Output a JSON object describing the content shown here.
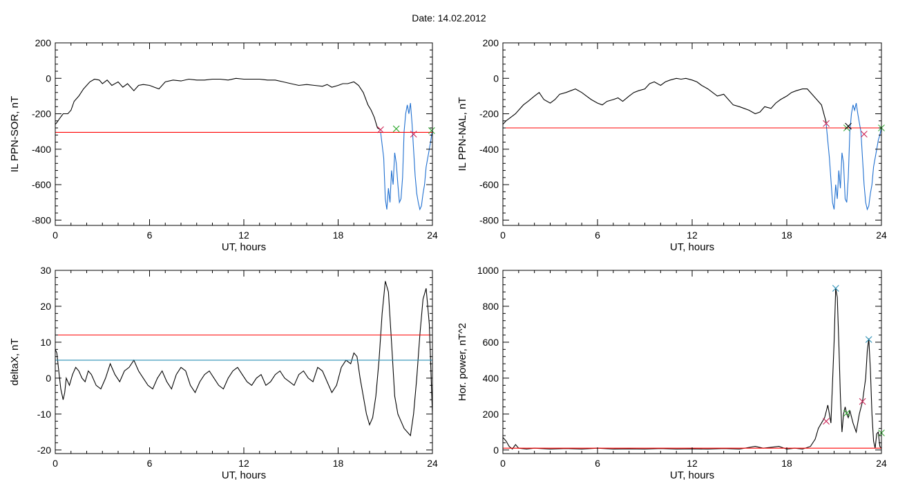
{
  "title": "Date:  14.02.2012",
  "chart_data": [
    {
      "id": "sor",
      "type": "line",
      "xlabel": "UT, hours",
      "ylabel": "IL PPN-SOR, nT",
      "xlim": [
        0,
        24
      ],
      "ylim": [
        -830,
        200
      ],
      "xticks": [
        0,
        6,
        12,
        18,
        24
      ],
      "yticks": [
        -800,
        -600,
        -400,
        -200,
        0,
        200
      ],
      "grid": false,
      "series": [
        {
          "color": "#000000",
          "x": [
            0,
            0.1,
            0.25,
            0.5,
            0.8,
            1.0,
            1.2,
            1.5,
            1.8,
            2.0,
            2.2,
            2.5,
            2.8,
            3.0,
            3.3,
            3.6,
            4.0,
            4.3,
            4.6,
            5.0,
            5.3,
            5.6,
            6.0,
            6.3,
            6.6,
            7.0,
            7.5,
            8.0,
            8.5,
            9.0,
            9.5,
            10.0,
            10.5,
            11.0,
            11.5,
            12.0,
            12.5,
            13.0,
            13.5,
            14.0,
            14.5,
            15.0,
            15.5,
            16.0,
            16.5,
            17.0,
            17.3,
            17.6,
            18.0,
            18.3,
            18.6,
            19.0,
            19.3,
            19.6,
            19.9,
            20.1,
            20.3,
            20.5,
            20.7
          ],
          "y": [
            -260,
            -250,
            -230,
            -200,
            -200,
            -180,
            -130,
            -100,
            -60,
            -40,
            -20,
            -5,
            -10,
            -30,
            -10,
            -40,
            -20,
            -50,
            -30,
            -70,
            -40,
            -35,
            -40,
            -50,
            -60,
            -20,
            -10,
            -15,
            -5,
            -10,
            -10,
            -5,
            -5,
            -10,
            0,
            -5,
            -5,
            -5,
            -10,
            -10,
            -20,
            -30,
            -40,
            -35,
            -40,
            -45,
            -35,
            -50,
            -40,
            -30,
            -30,
            -20,
            -40,
            -80,
            -150,
            -180,
            -220,
            -280,
            -290
          ]
        },
        {
          "color": "#1f6fd0",
          "x": [
            20.7,
            20.9,
            21.0,
            21.1,
            21.2,
            21.3,
            21.4,
            21.5,
            21.6,
            21.7,
            21.8,
            21.9,
            22.0,
            22.1,
            22.2,
            22.3,
            22.4,
            22.5,
            22.6,
            22.7,
            22.8,
            22.9,
            23.0,
            23.1,
            23.2,
            23.3,
            23.4,
            23.5,
            23.6,
            23.7,
            23.8,
            23.9,
            24.0
          ],
          "y": [
            -300,
            -450,
            -680,
            -740,
            -620,
            -700,
            -520,
            -600,
            -420,
            -480,
            -600,
            -700,
            -680,
            -560,
            -300,
            -200,
            -150,
            -200,
            -140,
            -250,
            -400,
            -550,
            -650,
            -700,
            -740,
            -720,
            -650,
            -600,
            -500,
            -450,
            -400,
            -350,
            -290
          ]
        },
        {
          "color": "#ff0000",
          "x": [
            0,
            24
          ],
          "y": [
            -305,
            -305
          ]
        }
      ],
      "markers": [
        {
          "x": 20.7,
          "y": -290,
          "color": "#cc2255"
        },
        {
          "x": 21.7,
          "y": -285,
          "color": "#33aa33"
        },
        {
          "x": 22.8,
          "y": -315,
          "color": "#cc2255"
        },
        {
          "x": 23.95,
          "y": -295,
          "color": "#33aa33"
        }
      ]
    },
    {
      "id": "nal",
      "type": "line",
      "xlabel": "UT, hours",
      "ylabel": "IL PPN-NAL, nT",
      "xlim": [
        0,
        24
      ],
      "ylim": [
        -830,
        200
      ],
      "xticks": [
        0,
        6,
        12,
        18,
        24
      ],
      "yticks": [
        -800,
        -600,
        -400,
        -200,
        0,
        200
      ],
      "grid": false,
      "series": [
        {
          "color": "#000000",
          "x": [
            0,
            0.2,
            0.5,
            0.8,
            1.0,
            1.3,
            1.6,
            2.0,
            2.3,
            2.6,
            3.0,
            3.3,
            3.6,
            4.0,
            4.3,
            4.6,
            5.0,
            5.3,
            5.6,
            6.0,
            6.3,
            6.6,
            7.0,
            7.3,
            7.6,
            8.0,
            8.3,
            8.6,
            9.0,
            9.3,
            9.6,
            10.0,
            10.3,
            10.6,
            11.0,
            11.3,
            11.6,
            12.0,
            12.3,
            12.6,
            13.0,
            13.3,
            13.6,
            14.0,
            14.3,
            14.6,
            15.0,
            15.3,
            15.6,
            16.0,
            16.3,
            16.6,
            17.0,
            17.3,
            17.6,
            18.0,
            18.3,
            18.6,
            19.0,
            19.3,
            19.6,
            19.9,
            20.2,
            20.5
          ],
          "y": [
            -260,
            -240,
            -220,
            -200,
            -180,
            -150,
            -130,
            -100,
            -80,
            -120,
            -140,
            -120,
            -90,
            -80,
            -70,
            -60,
            -80,
            -100,
            -120,
            -140,
            -150,
            -130,
            -120,
            -110,
            -130,
            -100,
            -80,
            -70,
            -60,
            -30,
            -20,
            -40,
            -20,
            -10,
            0,
            -5,
            0,
            -10,
            -20,
            -40,
            -60,
            -80,
            -100,
            -90,
            -120,
            -150,
            -160,
            -170,
            -180,
            -200,
            -190,
            -160,
            -170,
            -140,
            -120,
            -100,
            -80,
            -70,
            -60,
            -60,
            -90,
            -120,
            -150,
            -250
          ]
        },
        {
          "color": "#1f6fd0",
          "x": [
            20.5,
            20.7,
            20.9,
            21.0,
            21.1,
            21.2,
            21.3,
            21.4,
            21.5,
            21.6,
            21.7,
            21.8,
            21.9,
            22.0,
            22.1,
            22.2,
            22.3,
            22.4,
            22.5,
            22.6,
            22.7,
            22.8,
            22.9,
            23.0,
            23.1,
            23.2,
            23.3,
            23.4,
            23.5,
            23.6,
            23.7,
            23.8,
            23.9,
            24.0
          ],
          "y": [
            -260,
            -450,
            -700,
            -740,
            -600,
            -680,
            -520,
            -620,
            -420,
            -480,
            -680,
            -700,
            -560,
            -300,
            -200,
            -150,
            -180,
            -140,
            -200,
            -250,
            -300,
            -450,
            -600,
            -700,
            -740,
            -720,
            -650,
            -600,
            -500,
            -450,
            -400,
            -350,
            -320,
            -280
          ]
        },
        {
          "color": "#ff0000",
          "x": [
            0,
            24
          ],
          "y": [
            -280,
            -280
          ]
        }
      ],
      "markers": [
        {
          "x": 20.5,
          "y": -255,
          "color": "#cc2255"
        },
        {
          "x": 21.8,
          "y": -280,
          "color": "#33aa33"
        },
        {
          "x": 21.9,
          "y": -270,
          "color": "#000000"
        },
        {
          "x": 22.9,
          "y": -315,
          "color": "#cc2255"
        },
        {
          "x": 24.0,
          "y": -280,
          "color": "#33aa33"
        }
      ]
    },
    {
      "id": "deltax",
      "type": "line",
      "xlabel": "UT, hours",
      "ylabel": "deltaX, nT",
      "xlim": [
        0,
        24
      ],
      "ylim": [
        -21,
        30
      ],
      "xticks": [
        0,
        6,
        12,
        18,
        24
      ],
      "yticks": [
        -20,
        -10,
        0,
        10,
        20,
        30
      ],
      "grid": false,
      "series": [
        {
          "color": "#000000",
          "x": [
            0,
            0.1,
            0.2,
            0.35,
            0.5,
            0.6,
            0.7,
            0.9,
            1.1,
            1.3,
            1.5,
            1.7,
            1.9,
            2.1,
            2.3,
            2.6,
            2.9,
            3.2,
            3.5,
            3.8,
            4.1,
            4.4,
            4.7,
            5.0,
            5.3,
            5.6,
            5.9,
            6.2,
            6.5,
            6.8,
            7.1,
            7.4,
            7.7,
            8.0,
            8.3,
            8.6,
            8.9,
            9.2,
            9.5,
            9.8,
            10.1,
            10.4,
            10.7,
            11.0,
            11.3,
            11.6,
            11.9,
            12.2,
            12.5,
            12.8,
            13.1,
            13.4,
            13.7,
            14.0,
            14.3,
            14.6,
            14.9,
            15.2,
            15.5,
            15.8,
            16.1,
            16.4,
            16.7,
            17.0,
            17.3,
            17.6,
            17.9,
            18.2,
            18.5,
            18.8,
            19.0,
            19.2,
            19.4,
            19.6,
            19.8,
            20.0,
            20.2,
            20.4,
            20.6,
            20.8,
            21.0,
            21.2,
            21.4,
            21.6,
            21.8,
            22.0,
            22.2,
            22.4,
            22.6,
            22.8,
            23.0,
            23.2,
            23.4,
            23.6,
            23.8,
            24.0
          ],
          "y": [
            8,
            7,
            3,
            -3,
            -6,
            -4,
            0,
            -2,
            1,
            3,
            2,
            0,
            -1,
            2,
            1,
            -2,
            -3,
            0,
            4,
            1,
            -1,
            2,
            3,
            5,
            2,
            0,
            -2,
            -3,
            0,
            2,
            -1,
            -3,
            1,
            3,
            2,
            -2,
            -4,
            -1,
            1,
            2,
            0,
            -2,
            -3,
            0,
            2,
            3,
            1,
            -1,
            -2,
            0,
            1,
            -2,
            -1,
            1,
            2,
            0,
            -1,
            -2,
            1,
            2,
            0,
            -1,
            3,
            2,
            -1,
            -4,
            -2,
            3,
            5,
            4,
            7,
            6,
            0,
            -5,
            -10,
            -13,
            -11,
            -5,
            5,
            18,
            27,
            24,
            10,
            -5,
            -10,
            -12,
            -14,
            -15,
            -16,
            -10,
            0,
            12,
            22,
            25,
            15,
            -10
          ]
        },
        {
          "color": "#ff0000",
          "x": [
            0,
            24
          ],
          "y": [
            12,
            12
          ]
        },
        {
          "color": "#2a8fb5",
          "x": [
            0,
            24
          ],
          "y": [
            5,
            5
          ]
        }
      ],
      "markers": []
    },
    {
      "id": "power",
      "type": "line",
      "xlabel": "UT, hours",
      "ylabel": "Hor. power, nT^2",
      "xlim": [
        0,
        24
      ],
      "ylim": [
        -20,
        1000
      ],
      "xticks": [
        0,
        6,
        12,
        18,
        24
      ],
      "yticks": [
        0,
        200,
        400,
        600,
        800,
        1000
      ],
      "grid": false,
      "series": [
        {
          "color": "#000000",
          "x": [
            0,
            0.2,
            0.4,
            0.6,
            0.8,
            1.0,
            1.5,
            2.0,
            3.0,
            4.0,
            5.0,
            6.0,
            7.0,
            8.0,
            9.0,
            10.0,
            11.0,
            12.0,
            13.0,
            14.0,
            15.0,
            16.0,
            16.5,
            17.0,
            17.5,
            18.0,
            18.5,
            19.0,
            19.5,
            19.8,
            20.0,
            20.2,
            20.4,
            20.6,
            20.8,
            21.0,
            21.1,
            21.2,
            21.3,
            21.4,
            21.5,
            21.6,
            21.7,
            21.8,
            21.9,
            22.0,
            22.2,
            22.4,
            22.6,
            22.8,
            23.0,
            23.1,
            23.2,
            23.3,
            23.4,
            23.5,
            23.6,
            23.7,
            23.8,
            23.9,
            24.0
          ],
          "y": [
            70,
            50,
            20,
            5,
            30,
            10,
            5,
            10,
            5,
            8,
            5,
            10,
            5,
            6,
            5,
            8,
            5,
            6,
            5,
            8,
            5,
            20,
            10,
            15,
            20,
            5,
            10,
            5,
            20,
            60,
            120,
            150,
            180,
            250,
            150,
            600,
            900,
            850,
            600,
            300,
            100,
            200,
            240,
            200,
            180,
            220,
            150,
            100,
            200,
            270,
            400,
            550,
            620,
            450,
            200,
            50,
            10,
            90,
            100,
            20,
            10
          ]
        },
        {
          "color": "#ff0000",
          "x": [
            0,
            24
          ],
          "y": [
            10,
            10
          ]
        }
      ],
      "markers": [
        {
          "x": 20.5,
          "y": 160,
          "color": "#cc2255"
        },
        {
          "x": 21.1,
          "y": 900,
          "color": "#2a8fb5"
        },
        {
          "x": 21.8,
          "y": 205,
          "color": "#33aa33"
        },
        {
          "x": 22.8,
          "y": 270,
          "color": "#cc2255"
        },
        {
          "x": 23.2,
          "y": 615,
          "color": "#2a8fb5"
        },
        {
          "x": 24.0,
          "y": 95,
          "color": "#33aa33"
        }
      ]
    }
  ]
}
